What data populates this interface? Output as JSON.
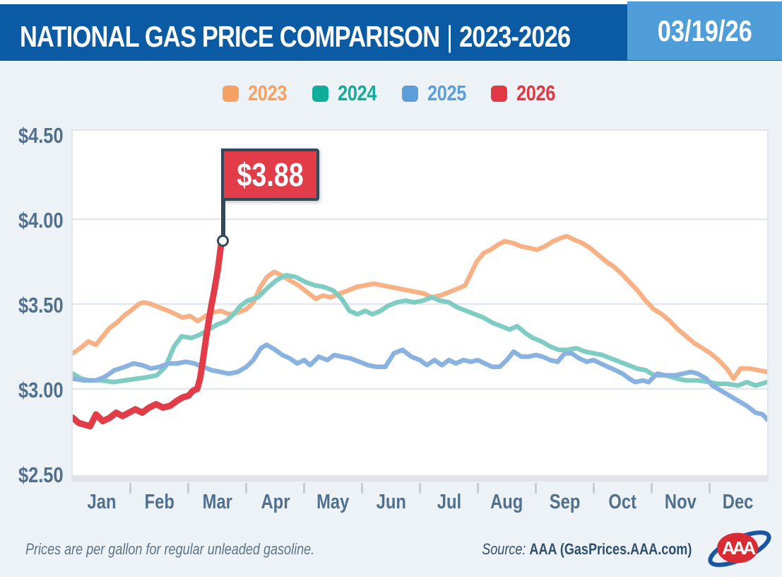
{
  "header": {
    "title": "NATIONAL GAS PRICE COMPARISON",
    "separator": "|",
    "years": "2023-2026",
    "date": "03/19/26",
    "bar_color": "#0B5BA4",
    "date_box_color": "#4F9ED9"
  },
  "legend": [
    {
      "label": "2023",
      "color": "#F5A164"
    },
    {
      "label": "2024",
      "color": "#12AC9A"
    },
    {
      "label": "2025",
      "color": "#5C9FD8"
    },
    {
      "label": "2026",
      "color": "#E23744"
    }
  ],
  "chart_data": {
    "type": "line",
    "title": "National Gas Price Comparison 2023-2026",
    "x_axis": {
      "months": [
        "Jan",
        "Feb",
        "Mar",
        "Apr",
        "May",
        "Jun",
        "Jul",
        "Aug",
        "Sep",
        "Oct",
        "Nov",
        "Dec"
      ]
    },
    "y_axis": {
      "min": 2.5,
      "max": 4.5,
      "tick_values": [
        4.5,
        4.0,
        3.5,
        3.0,
        2.5
      ],
      "tick_labels": [
        "$4.50",
        "$4.00",
        "$3.50",
        "$3.00",
        "$2.50"
      ]
    },
    "grid": "horizontal-only",
    "legend_position": "top-center",
    "annotation": {
      "label": "$3.88",
      "series": "2026",
      "x_month": 2.575,
      "value": 3.88,
      "flag_color": "#E13C48",
      "pole_color": "#32495A"
    },
    "series": [
      {
        "name": "2023",
        "line_color": "#F8B185",
        "width": 6.5,
        "points": [
          [
            0,
            3.21
          ],
          [
            0.13,
            3.24
          ],
          [
            0.27,
            3.28
          ],
          [
            0.4,
            3.26
          ],
          [
            0.52,
            3.31
          ],
          [
            0.64,
            3.36
          ],
          [
            0.76,
            3.39
          ],
          [
            0.88,
            3.43
          ],
          [
            1,
            3.46
          ],
          [
            1.14,
            3.5
          ],
          [
            1.22,
            3.51
          ],
          [
            1.35,
            3.5
          ],
          [
            1.5,
            3.48
          ],
          [
            1.65,
            3.46
          ],
          [
            1.78,
            3.44
          ],
          [
            1.9,
            3.42
          ],
          [
            2.02,
            3.43
          ],
          [
            2.16,
            3.4
          ],
          [
            2.3,
            3.43
          ],
          [
            2.42,
            3.45
          ],
          [
            2.56,
            3.46
          ],
          [
            2.7,
            3.44
          ],
          [
            2.85,
            3.45
          ],
          [
            3,
            3.47
          ],
          [
            3.12,
            3.51
          ],
          [
            3.24,
            3.6
          ],
          [
            3.36,
            3.66
          ],
          [
            3.48,
            3.69
          ],
          [
            3.6,
            3.67
          ],
          [
            3.75,
            3.64
          ],
          [
            3.9,
            3.61
          ],
          [
            4.05,
            3.57
          ],
          [
            4.2,
            3.53
          ],
          [
            4.32,
            3.55
          ],
          [
            4.46,
            3.54
          ],
          [
            4.6,
            3.56
          ],
          [
            4.76,
            3.58
          ],
          [
            4.9,
            3.6
          ],
          [
            5.05,
            3.61
          ],
          [
            5.2,
            3.62
          ],
          [
            5.35,
            3.61
          ],
          [
            5.5,
            3.6
          ],
          [
            5.65,
            3.59
          ],
          [
            5.8,
            3.58
          ],
          [
            5.95,
            3.57
          ],
          [
            6.08,
            3.56
          ],
          [
            6.2,
            3.54
          ],
          [
            6.35,
            3.55
          ],
          [
            6.5,
            3.57
          ],
          [
            6.65,
            3.59
          ],
          [
            6.78,
            3.61
          ],
          [
            6.88,
            3.68
          ],
          [
            6.98,
            3.75
          ],
          [
            7.1,
            3.8
          ],
          [
            7.22,
            3.82
          ],
          [
            7.35,
            3.85
          ],
          [
            7.46,
            3.87
          ],
          [
            7.6,
            3.86
          ],
          [
            7.75,
            3.84
          ],
          [
            7.9,
            3.83
          ],
          [
            8.02,
            3.82
          ],
          [
            8.16,
            3.84
          ],
          [
            8.3,
            3.87
          ],
          [
            8.44,
            3.89
          ],
          [
            8.54,
            3.9
          ],
          [
            8.66,
            3.88
          ],
          [
            8.8,
            3.86
          ],
          [
            8.94,
            3.83
          ],
          [
            9.08,
            3.79
          ],
          [
            9.22,
            3.75
          ],
          [
            9.35,
            3.72
          ],
          [
            9.48,
            3.68
          ],
          [
            9.62,
            3.63
          ],
          [
            9.76,
            3.58
          ],
          [
            9.9,
            3.52
          ],
          [
            10.04,
            3.47
          ],
          [
            10.18,
            3.44
          ],
          [
            10.32,
            3.4
          ],
          [
            10.46,
            3.35
          ],
          [
            10.6,
            3.31
          ],
          [
            10.74,
            3.27
          ],
          [
            10.88,
            3.24
          ],
          [
            11.02,
            3.21
          ],
          [
            11.16,
            3.17
          ],
          [
            11.3,
            3.12
          ],
          [
            11.42,
            3.06
          ],
          [
            11.54,
            3.12
          ],
          [
            11.7,
            3.12
          ],
          [
            11.85,
            3.11
          ],
          [
            12,
            3.1
          ]
        ]
      },
      {
        "name": "2024",
        "line_color": "#7FCDC2",
        "width": 6.5,
        "points": [
          [
            0,
            3.09
          ],
          [
            0.15,
            3.06
          ],
          [
            0.3,
            3.05
          ],
          [
            0.5,
            3.05
          ],
          [
            0.7,
            3.04
          ],
          [
            0.9,
            3.05
          ],
          [
            1.1,
            3.06
          ],
          [
            1.3,
            3.07
          ],
          [
            1.45,
            3.08
          ],
          [
            1.6,
            3.13
          ],
          [
            1.75,
            3.25
          ],
          [
            1.88,
            3.31
          ],
          [
            2.05,
            3.3
          ],
          [
            2.2,
            3.32
          ],
          [
            2.35,
            3.35
          ],
          [
            2.5,
            3.38
          ],
          [
            2.65,
            3.4
          ],
          [
            2.78,
            3.44
          ],
          [
            2.9,
            3.49
          ],
          [
            3.02,
            3.52
          ],
          [
            3.2,
            3.54
          ],
          [
            3.38,
            3.6
          ],
          [
            3.52,
            3.64
          ],
          [
            3.68,
            3.67
          ],
          [
            3.85,
            3.66
          ],
          [
            4.02,
            3.63
          ],
          [
            4.18,
            3.61
          ],
          [
            4.35,
            3.6
          ],
          [
            4.5,
            3.58
          ],
          [
            4.65,
            3.53
          ],
          [
            4.78,
            3.46
          ],
          [
            4.92,
            3.44
          ],
          [
            5.05,
            3.46
          ],
          [
            5.18,
            3.44
          ],
          [
            5.32,
            3.46
          ],
          [
            5.45,
            3.49
          ],
          [
            5.6,
            3.51
          ],
          [
            5.75,
            3.52
          ],
          [
            5.9,
            3.51
          ],
          [
            6.05,
            3.52
          ],
          [
            6.2,
            3.54
          ],
          [
            6.35,
            3.52
          ],
          [
            6.5,
            3.51
          ],
          [
            6.65,
            3.48
          ],
          [
            6.8,
            3.46
          ],
          [
            6.95,
            3.44
          ],
          [
            7.1,
            3.42
          ],
          [
            7.25,
            3.39
          ],
          [
            7.4,
            3.37
          ],
          [
            7.55,
            3.35
          ],
          [
            7.68,
            3.37
          ],
          [
            7.82,
            3.33
          ],
          [
            7.95,
            3.3
          ],
          [
            8.1,
            3.28
          ],
          [
            8.25,
            3.25
          ],
          [
            8.4,
            3.23
          ],
          [
            8.55,
            3.23
          ],
          [
            8.7,
            3.24
          ],
          [
            8.85,
            3.22
          ],
          [
            9,
            3.21
          ],
          [
            9.15,
            3.2
          ],
          [
            9.3,
            3.18
          ],
          [
            9.45,
            3.16
          ],
          [
            9.6,
            3.14
          ],
          [
            9.75,
            3.12
          ],
          [
            9.9,
            3.11
          ],
          [
            10.05,
            3.08
          ],
          [
            10.25,
            3.08
          ],
          [
            10.45,
            3.06
          ],
          [
            10.6,
            3.05
          ],
          [
            10.8,
            3.05
          ],
          [
            11,
            3.04
          ],
          [
            11.15,
            3.03
          ],
          [
            11.3,
            3.03
          ],
          [
            11.5,
            3.02
          ],
          [
            11.65,
            3.04
          ],
          [
            11.8,
            3.02
          ],
          [
            11.9,
            3.03
          ],
          [
            12,
            3.04
          ]
        ]
      },
      {
        "name": "2025",
        "line_color": "#8AB2E0",
        "width": 6.5,
        "points": [
          [
            0,
            3.06
          ],
          [
            0.2,
            3.05
          ],
          [
            0.4,
            3.05
          ],
          [
            0.55,
            3.07
          ],
          [
            0.72,
            3.11
          ],
          [
            0.9,
            3.13
          ],
          [
            1.05,
            3.15
          ],
          [
            1.2,
            3.14
          ],
          [
            1.35,
            3.12
          ],
          [
            1.5,
            3.13
          ],
          [
            1.65,
            3.15
          ],
          [
            1.8,
            3.15
          ],
          [
            1.95,
            3.16
          ],
          [
            2.1,
            3.15
          ],
          [
            2.25,
            3.13
          ],
          [
            2.4,
            3.11
          ],
          [
            2.55,
            3.1
          ],
          [
            2.7,
            3.09
          ],
          [
            2.85,
            3.1
          ],
          [
            3,
            3.13
          ],
          [
            3.12,
            3.17
          ],
          [
            3.25,
            3.24
          ],
          [
            3.35,
            3.26
          ],
          [
            3.5,
            3.23
          ],
          [
            3.62,
            3.2
          ],
          [
            3.75,
            3.18
          ],
          [
            3.88,
            3.15
          ],
          [
            4,
            3.17
          ],
          [
            4.1,
            3.14
          ],
          [
            4.25,
            3.19
          ],
          [
            4.4,
            3.17
          ],
          [
            4.52,
            3.2
          ],
          [
            4.65,
            3.19
          ],
          [
            4.8,
            3.18
          ],
          [
            4.95,
            3.16
          ],
          [
            5.1,
            3.14
          ],
          [
            5.25,
            3.13
          ],
          [
            5.4,
            3.13
          ],
          [
            5.55,
            3.21
          ],
          [
            5.7,
            3.23
          ],
          [
            5.85,
            3.19
          ],
          [
            6,
            3.17
          ],
          [
            6.12,
            3.14
          ],
          [
            6.25,
            3.17
          ],
          [
            6.38,
            3.14
          ],
          [
            6.5,
            3.17
          ],
          [
            6.62,
            3.15
          ],
          [
            6.75,
            3.17
          ],
          [
            6.88,
            3.16
          ],
          [
            7,
            3.17
          ],
          [
            7.12,
            3.15
          ],
          [
            7.25,
            3.13
          ],
          [
            7.38,
            3.13
          ],
          [
            7.5,
            3.17
          ],
          [
            7.62,
            3.22
          ],
          [
            7.75,
            3.19
          ],
          [
            7.88,
            3.19
          ],
          [
            8,
            3.2
          ],
          [
            8.12,
            3.19
          ],
          [
            8.25,
            3.17
          ],
          [
            8.38,
            3.16
          ],
          [
            8.5,
            3.21
          ],
          [
            8.62,
            3.21
          ],
          [
            8.75,
            3.18
          ],
          [
            8.88,
            3.16
          ],
          [
            9,
            3.17
          ],
          [
            9.12,
            3.15
          ],
          [
            9.25,
            3.13
          ],
          [
            9.38,
            3.11
          ],
          [
            9.5,
            3.09
          ],
          [
            9.62,
            3.06
          ],
          [
            9.72,
            3.04
          ],
          [
            9.85,
            3.05
          ],
          [
            9.95,
            3.04
          ],
          [
            10.1,
            3.09
          ],
          [
            10.25,
            3.08
          ],
          [
            10.4,
            3.08
          ],
          [
            10.55,
            3.09
          ],
          [
            10.68,
            3.1
          ],
          [
            10.8,
            3.09
          ],
          [
            10.95,
            3.06
          ],
          [
            11.05,
            3.02
          ],
          [
            11.2,
            2.99
          ],
          [
            11.35,
            2.96
          ],
          [
            11.5,
            2.93
          ],
          [
            11.65,
            2.9
          ],
          [
            11.8,
            2.86
          ],
          [
            11.92,
            2.85
          ],
          [
            12,
            2.82
          ]
        ]
      },
      {
        "name": "2026",
        "line_color": "#E13C48",
        "width": 9,
        "points": [
          [
            0,
            2.83
          ],
          [
            0.1,
            2.8
          ],
          [
            0.2,
            2.79
          ],
          [
            0.3,
            2.78
          ],
          [
            0.4,
            2.85
          ],
          [
            0.52,
            2.81
          ],
          [
            0.64,
            2.83
          ],
          [
            0.75,
            2.86
          ],
          [
            0.86,
            2.84
          ],
          [
            0.97,
            2.86
          ],
          [
            1.08,
            2.88
          ],
          [
            1.2,
            2.86
          ],
          [
            1.32,
            2.89
          ],
          [
            1.44,
            2.91
          ],
          [
            1.56,
            2.89
          ],
          [
            1.68,
            2.9
          ],
          [
            1.8,
            2.93
          ],
          [
            1.9,
            2.95
          ],
          [
            2,
            2.96
          ],
          [
            2.08,
            2.99
          ],
          [
            2.15,
            3
          ],
          [
            2.2,
            3.06
          ],
          [
            2.25,
            3.17
          ],
          [
            2.3,
            3.29
          ],
          [
            2.35,
            3.4
          ],
          [
            2.4,
            3.5
          ],
          [
            2.44,
            3.57
          ],
          [
            2.48,
            3.65
          ],
          [
            2.51,
            3.71
          ],
          [
            2.54,
            3.79
          ],
          [
            2.56,
            3.84
          ],
          [
            2.575,
            3.88
          ]
        ]
      }
    ]
  },
  "footer": {
    "note": "Prices are per gallon for regular unleaded gasoline.",
    "source_prefix": "Source:",
    "source": "AAA (GasPrices.AAA.com)",
    "logo_text": "AAA"
  }
}
